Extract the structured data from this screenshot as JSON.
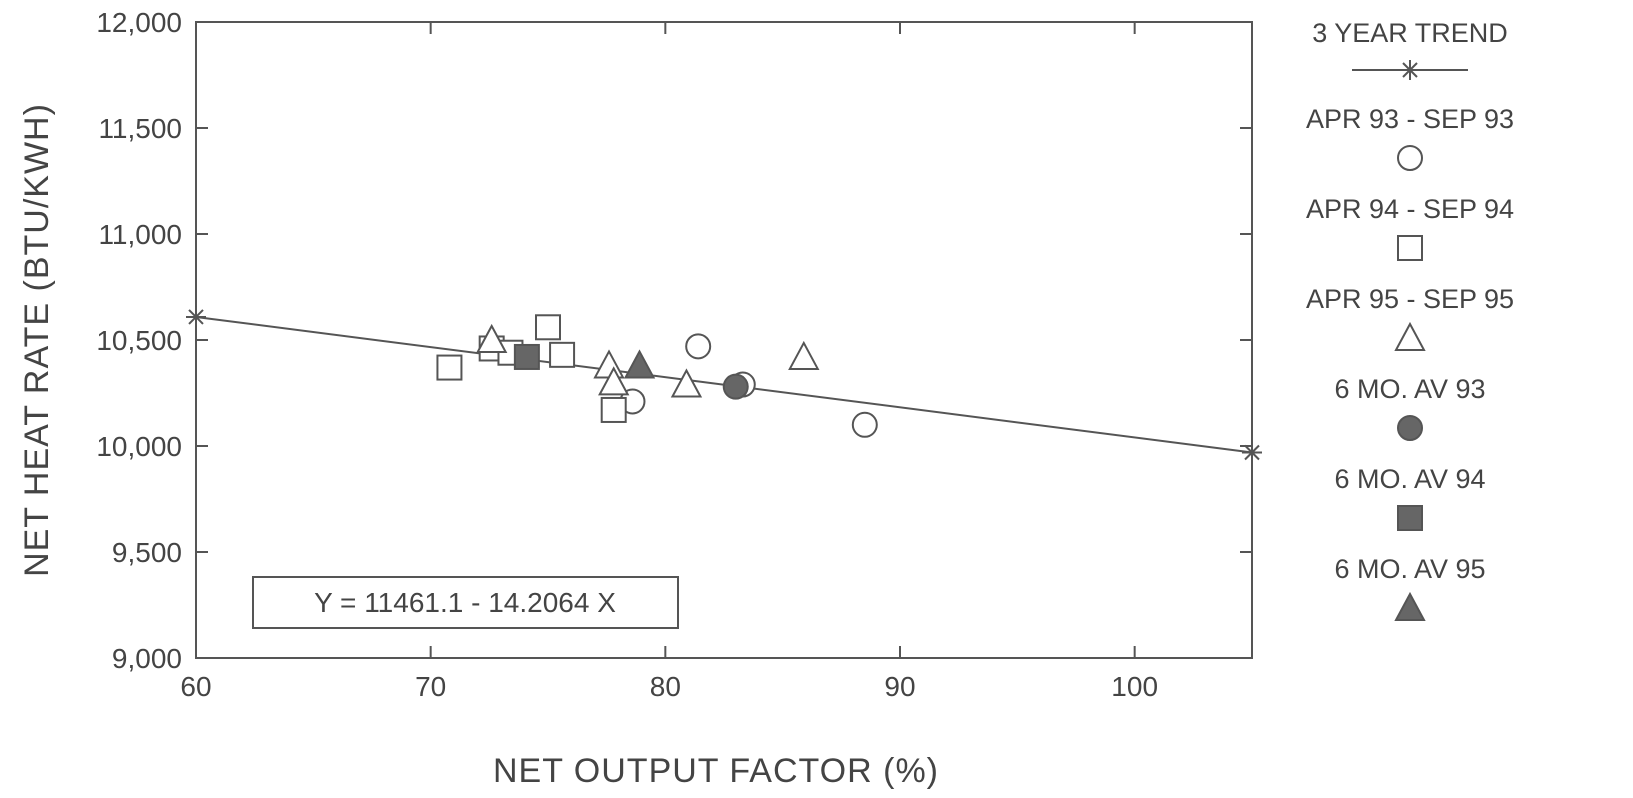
{
  "chart_data": {
    "type": "scatter",
    "title": "",
    "xlabel": "NET OUTPUT FACTOR (%)",
    "ylabel": "NET HEAT RATE (BTU/KWH)",
    "xlim": [
      60,
      105
    ],
    "ylim": [
      9000,
      12000
    ],
    "x_ticks": [
      {
        "value": 60,
        "label": "60"
      },
      {
        "value": 70,
        "label": "70"
      },
      {
        "value": 80,
        "label": "80"
      },
      {
        "value": 90,
        "label": "90"
      },
      {
        "value": 100,
        "label": "100"
      }
    ],
    "y_ticks": [
      {
        "value": 9000,
        "label": "9,000"
      },
      {
        "value": 9500,
        "label": "9,500"
      },
      {
        "value": 10000,
        "label": "10,000"
      },
      {
        "value": 10500,
        "label": "10,500"
      },
      {
        "value": 11000,
        "label": "11,000"
      },
      {
        "value": 11500,
        "label": "11,500"
      },
      {
        "value": 12000,
        "label": "12,000"
      }
    ],
    "grid": false,
    "legend_position": "right",
    "annotation": "Y = 11461.1 - 14.2064 X",
    "trend": {
      "name": "3 YEAR TREND",
      "x": [
        60,
        105
      ],
      "y": [
        10608.7,
        9969.4
      ]
    },
    "series": [
      {
        "name": "APR 93 - SEP 93",
        "marker": "circle-open",
        "x": [
          81.4,
          83.3,
          78.6,
          88.5
        ],
        "y": [
          10470,
          10290,
          10210,
          10100
        ]
      },
      {
        "name": "APR 94 - SEP 94",
        "marker": "square-open",
        "x": [
          70.8,
          72.6,
          73.4,
          75.0,
          75.6,
          77.8
        ],
        "y": [
          10370,
          10460,
          10440,
          10560,
          10430,
          10170
        ]
      },
      {
        "name": "APR 95 - SEP 95",
        "marker": "triangle-open",
        "x": [
          72.6,
          77.6,
          77.8,
          80.9,
          85.9
        ],
        "y": [
          10500,
          10380,
          10300,
          10290,
          10420
        ]
      },
      {
        "name": "6 MO. AV 93",
        "marker": "circle-filled",
        "x": [
          83.0
        ],
        "y": [
          10280
        ]
      },
      {
        "name": "6 MO. AV 94",
        "marker": "square-filled",
        "x": [
          74.1
        ],
        "y": [
          10420
        ]
      },
      {
        "name": "6 MO. AV 95",
        "marker": "triangle-filled",
        "x": [
          78.9
        ],
        "y": [
          10380
        ]
      }
    ],
    "colors": {
      "ink": "#555555",
      "fill": "#666666",
      "open_fill": "#ffffff"
    }
  }
}
